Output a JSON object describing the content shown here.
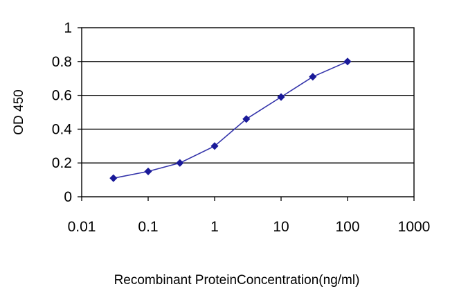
{
  "chart_data": {
    "type": "line",
    "title": "",
    "xlabel": "Recombinant ProteinConcentration(ng/ml)",
    "ylabel": "OD 450",
    "x_scale": "log",
    "xlim": [
      0.01,
      1000
    ],
    "ylim": [
      0,
      1
    ],
    "x_ticks": [
      "0.01",
      "0.1",
      "1",
      "10",
      "100",
      "1000"
    ],
    "y_ticks": [
      "0",
      "0.2",
      "0.4",
      "0.6",
      "0.8",
      "1"
    ],
    "grid": "horizontal",
    "legend": "none",
    "series": [
      {
        "x": [
          0.03,
          0.1,
          0.3,
          1,
          3,
          10,
          30,
          100
        ],
        "y": [
          0.11,
          0.15,
          0.2,
          0.3,
          0.46,
          0.59,
          0.71,
          0.8
        ]
      }
    ],
    "colors": {
      "line": "#3333aa",
      "marker": "#1a1a99",
      "grid": "#000000",
      "axis": "#000000"
    }
  }
}
